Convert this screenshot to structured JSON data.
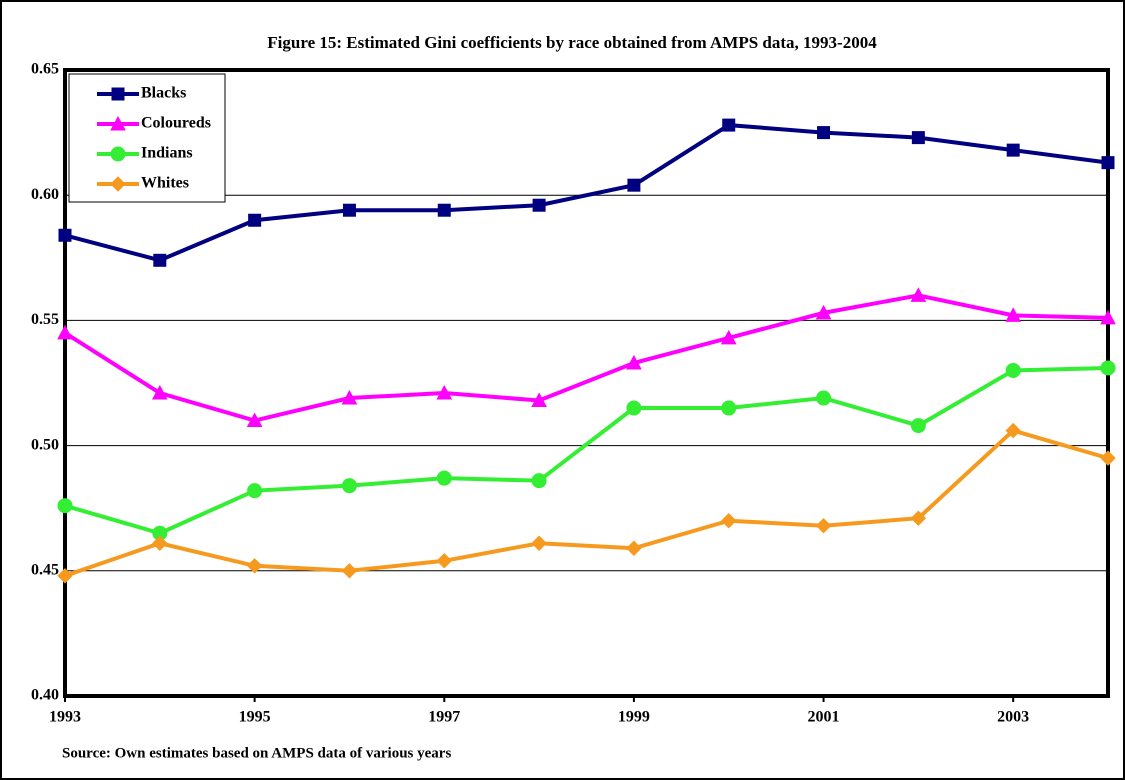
{
  "chart_data": {
    "type": "line",
    "title": "Figure 15: Estimated Gini coefficients by race obtained from AMPS data, 1993-2004",
    "source": "Source: Own estimates based on AMPS data of various years",
    "x": [
      1993,
      1994,
      1995,
      1996,
      1997,
      1998,
      1999,
      2000,
      2001,
      2002,
      2003,
      2004
    ],
    "xlim": [
      1993,
      2004
    ],
    "xticks": [
      1993,
      1995,
      1997,
      1999,
      2001,
      2003
    ],
    "ylim": [
      0.4,
      0.65
    ],
    "yticks": [
      {
        "value": 0.4,
        "label": "0.40"
      },
      0.45,
      {
        "value": 0.5,
        "label": "0.50"
      },
      0.55,
      {
        "value": 0.6,
        "label": "0.60"
      },
      0.65
    ],
    "grid": true,
    "legend": "upper left",
    "series": [
      {
        "name": "Blacks",
        "color": "#000080",
        "marker": "square",
        "values": [
          0.584,
          0.574,
          0.59,
          0.594,
          0.594,
          0.596,
          0.604,
          0.628,
          0.625,
          0.623,
          0.618,
          0.613
        ]
      },
      {
        "name": "Coloureds",
        "color": "#ff00ff",
        "marker": "triangle",
        "values": [
          0.545,
          0.521,
          0.51,
          0.519,
          0.521,
          0.518,
          0.533,
          0.543,
          0.553,
          0.56,
          0.552,
          0.551
        ]
      },
      {
        "name": "Indians",
        "color": "#33ee33",
        "marker": "circle",
        "values": [
          0.476,
          0.465,
          0.482,
          0.484,
          0.487,
          0.486,
          0.515,
          0.515,
          0.519,
          0.508,
          0.53,
          0.531
        ]
      },
      {
        "name": "Whites",
        "color": "#f59a1e",
        "marker": "diamond",
        "values": [
          0.448,
          0.461,
          0.452,
          0.45,
          0.454,
          0.461,
          0.459,
          0.47,
          0.468,
          0.471,
          0.506,
          0.495
        ]
      }
    ]
  }
}
